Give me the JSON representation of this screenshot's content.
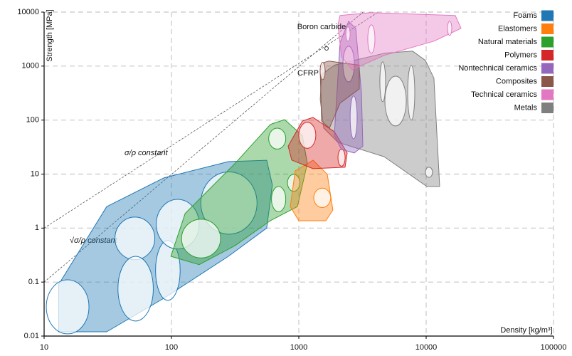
{
  "chart_data": {
    "type": "ashby",
    "xlabel": "Density [kg/m³]",
    "ylabel": "Strength [MPa]",
    "xlim": [
      10,
      100000
    ],
    "ylim": [
      0.01,
      10000
    ],
    "xticks": [
      10,
      100,
      1000,
      10000,
      100000
    ],
    "yticks": [
      0.01,
      0.1,
      1,
      10,
      100,
      1000,
      10000
    ],
    "log_x": true,
    "log_y": true,
    "grid": true,
    "legend": "upper right",
    "series": [
      {
        "name": "Metals",
        "color": "#7f7f7f",
        "x": [
          1472,
          1509,
          1901,
          4680,
          7834,
          9863,
          11510,
          12770,
          10120,
          4680,
          2028,
          1570
        ],
        "values": [
          240,
          695,
          1040,
          1727,
          1893,
          1276,
          597,
          5.9,
          5.9,
          21,
          38.7,
          71
        ],
        "ellipses": [
          [
            4740,
            6980,
            78,
            650
          ],
          [
            9860,
            11230,
            8.7,
            13.4
          ],
          [
            7160,
            8140,
            100,
            1030
          ],
          [
            4330,
            4800,
            220,
            1200
          ]
        ]
      },
      {
        "name": "Foams",
        "color": "#1f77b4",
        "x": [
          13,
          13,
          31,
          87,
          280,
          560,
          620,
          560,
          280,
          87,
          31
        ],
        "values": [
          0.012,
          0.09,
          2.5,
          8.5,
          17,
          18,
          6.3,
          1,
          0.3,
          0.05,
          0.012
        ],
        "ellipses": [
          [
            10.4,
            22.5,
            0.011,
            0.11
          ],
          [
            36,
            74,
            0.26,
            1.6
          ],
          [
            38,
            72,
            0.019,
            0.3
          ],
          [
            75,
            117,
            0.046,
            0.59
          ],
          [
            76,
            165,
            0.41,
            3.4
          ],
          [
            170,
            470,
            0.77,
            11
          ]
        ]
      },
      {
        "name": "Natural materials",
        "color": "#2ca02c",
        "x": [
          99,
          128,
          314,
          598,
          773,
          1067,
          1167,
          975,
          598,
          314,
          165
        ],
        "values": [
          0.3,
          1.86,
          15.6,
          83,
          102,
          52,
          15.6,
          2.5,
          1.37,
          0.47,
          0.21
        ],
        "ellipses": [
          [
            120,
            243,
            0.28,
            1.46
          ],
          [
            580,
            790,
            29,
            71
          ],
          [
            610,
            790,
            2,
            5.9
          ],
          [
            815,
            1020,
            4.8,
            9.9
          ]
        ]
      },
      {
        "name": "Elastomers",
        "color": "#ff7f0e",
        "x": [
          857,
          937,
          1294,
          1673,
          1853,
          1630,
          1000
        ],
        "values": [
          2.5,
          11.5,
          18.1,
          9.9,
          2.16,
          1.37,
          1.37
        ],
        "ellipses": [
          [
            1310,
            1780,
            2.4,
            5.5
          ]
        ]
      },
      {
        "name": "Polymers",
        "color": "#d62728",
        "x": [
          824,
          1067,
          1294,
          1901,
          2398,
          2307,
          1294,
          880
        ],
        "values": [
          33,
          96,
          112,
          61,
          24.6,
          13.4,
          12.6,
          18.2
        ],
        "ellipses": [
          [
            1000,
            1360,
            30,
            91
          ],
          [
            2030,
            2310,
            14,
            29
          ]
        ]
      },
      {
        "name": "Nontechnical ceramics",
        "color": "#9467bd",
        "x": [
          1901,
          2109,
          2460,
          2799,
          3103,
          3184,
          2729,
          2163
        ],
        "values": [
          52,
          2723,
          6780,
          5000,
          325,
          33,
          24.6,
          28.6
        ],
        "ellipses": [
          [
            2220,
            2730,
            510,
            2340
          ],
          [
            2530,
            2870,
            45,
            280
          ]
        ]
      },
      {
        "name": "Composites",
        "color": "#8c564b",
        "x": [
          1472,
          1570,
          1718,
          2985,
          2985,
          2109,
          1738,
          1509
        ],
        "values": [
          809,
          1165,
          1237,
          1040,
          378,
          206,
          71,
          96
        ],
        "ellipses": [
          [
            1470,
            1610,
            560,
            1170
          ]
        ]
      },
      {
        "name": "Technical ceramics",
        "color": "#e377c2",
        "x": [
          2028,
          2109,
          3622,
          16950,
          18780,
          11510,
          4680,
          2624,
          2163
        ],
        "values": [
          5823,
          8650,
          9760,
          8650,
          5000,
          2900,
          1579,
          860,
          1485
        ],
        "ellipses": [
          [
            2340,
            2530,
            2900,
            5320
          ],
          [
            3480,
            3960,
            1730,
            5820
          ],
          [
            14700,
            15900,
            3690,
            6780
          ]
        ]
      }
    ],
    "legend_order": [
      "Foams",
      "Elastomers",
      "Natural materials",
      "Polymers",
      "Nontechnical ceramics",
      "Composites",
      "Technical ceramics",
      "Metals"
    ],
    "guides": [
      {
        "label": "σ/ρ constant",
        "x": [
          10,
          4200
        ],
        "values": [
          1,
          10000
        ]
      },
      {
        "label": "√σ/ρ constant",
        "x": [
          10,
          3200
        ],
        "values": [
          0.1,
          10000
        ]
      }
    ],
    "annotations": [
      "Boron carbide",
      "CFRP"
    ]
  }
}
